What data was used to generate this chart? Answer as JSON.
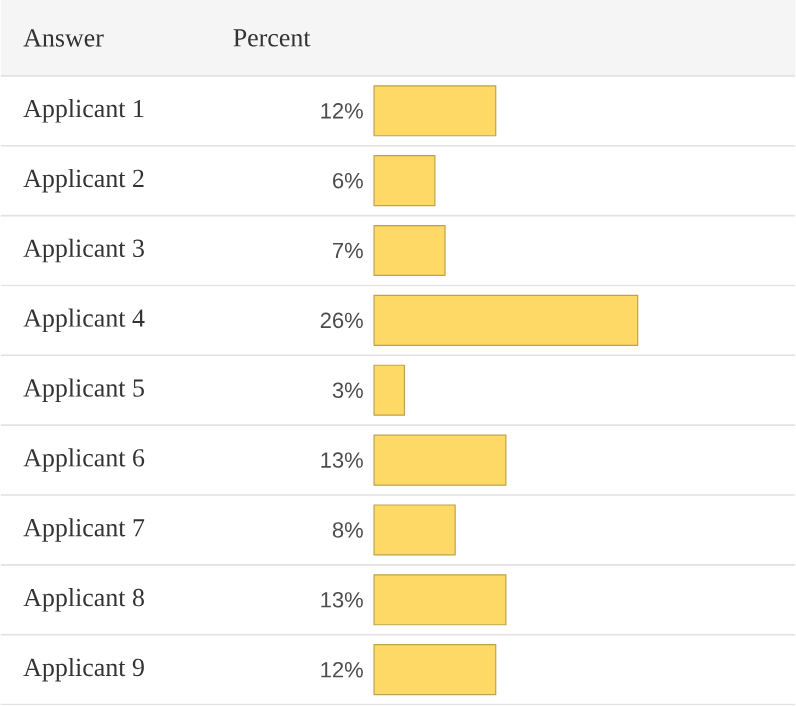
{
  "chart_data": {
    "type": "bar",
    "orientation": "horizontal",
    "ylabel": "Answer",
    "xlabel": "Percent",
    "categories": [
      "Applicant 1",
      "Applicant 2",
      "Applicant 3",
      "Applicant 4",
      "Applicant 5",
      "Applicant 6",
      "Applicant 7",
      "Applicant 8",
      "Applicant 9"
    ],
    "values": [
      12,
      6,
      7,
      26,
      3,
      13,
      8,
      13,
      12
    ],
    "value_labels": [
      "12%",
      "6%",
      "7%",
      "26%",
      "3%",
      "13%",
      "8%",
      "13%",
      "12%"
    ],
    "color": "#ffd966"
  }
}
